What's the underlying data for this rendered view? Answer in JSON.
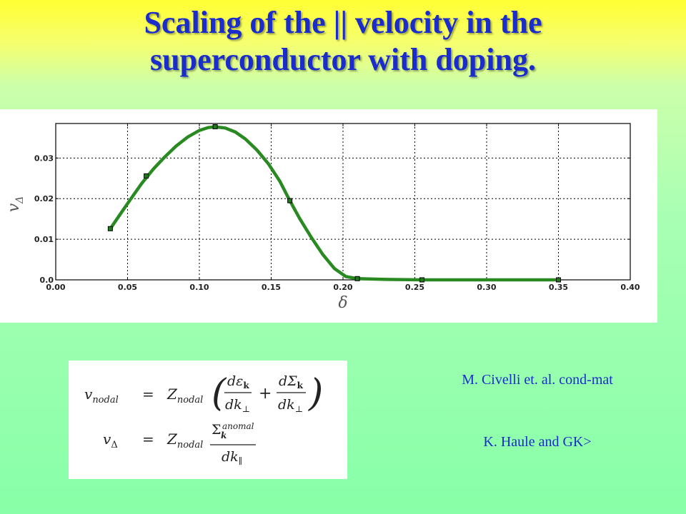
{
  "slide": {
    "title_line1": "Scaling of the || velocity in the",
    "title_line2": "superconductor with doping.",
    "credit1": "M. Civelli et. al. cond-mat",
    "credit2": "K. Haule and GK>"
  },
  "colors": {
    "title": "#1a2ccc",
    "curve": "#2a8a22",
    "marker": "#1e7a1a"
  },
  "formula": {
    "line1": "v_nodal = Z_nodal ( dε_k/dk⊥ + dΣ_k/dk⊥ )",
    "line2": "v_Δ = Z_nodal Σ_k^anomal / dk_∥"
  },
  "chart_data": {
    "type": "line",
    "xlabel": "δ",
    "ylabel": "v_Δ",
    "xlim": [
      0.0,
      0.4
    ],
    "ylim": [
      0.0,
      0.0385
    ],
    "xticks": [
      "0.00",
      "0.05",
      "0.10",
      "0.15",
      "0.20",
      "0.25",
      "0.30",
      "0.35",
      "0.40"
    ],
    "yticks": [
      "0.0",
      "0.01",
      "0.02",
      "0.03"
    ],
    "grid": true,
    "points": {
      "x": [
        0.038,
        0.063,
        0.111,
        0.163,
        0.21,
        0.255,
        0.35
      ],
      "y": [
        0.0126,
        0.0256,
        0.0377,
        0.0195,
        0.0003,
        0.0,
        0.0
      ]
    },
    "curve": {
      "x": [
        0.038,
        0.045,
        0.052,
        0.06,
        0.068,
        0.076,
        0.084,
        0.092,
        0.1,
        0.106,
        0.111,
        0.118,
        0.125,
        0.132,
        0.14,
        0.148,
        0.156,
        0.163,
        0.17,
        0.178,
        0.186,
        0.194,
        0.202,
        0.21,
        0.23,
        0.255,
        0.3,
        0.35
      ],
      "y": [
        0.0126,
        0.0162,
        0.0198,
        0.0238,
        0.0273,
        0.0303,
        0.033,
        0.0352,
        0.0368,
        0.0375,
        0.0377,
        0.0374,
        0.0364,
        0.0347,
        0.032,
        0.0286,
        0.0243,
        0.0195,
        0.015,
        0.0104,
        0.0062,
        0.0028,
        0.0008,
        0.0003,
        0.0001,
        0.0,
        0.0,
        0.0
      ]
    }
  }
}
